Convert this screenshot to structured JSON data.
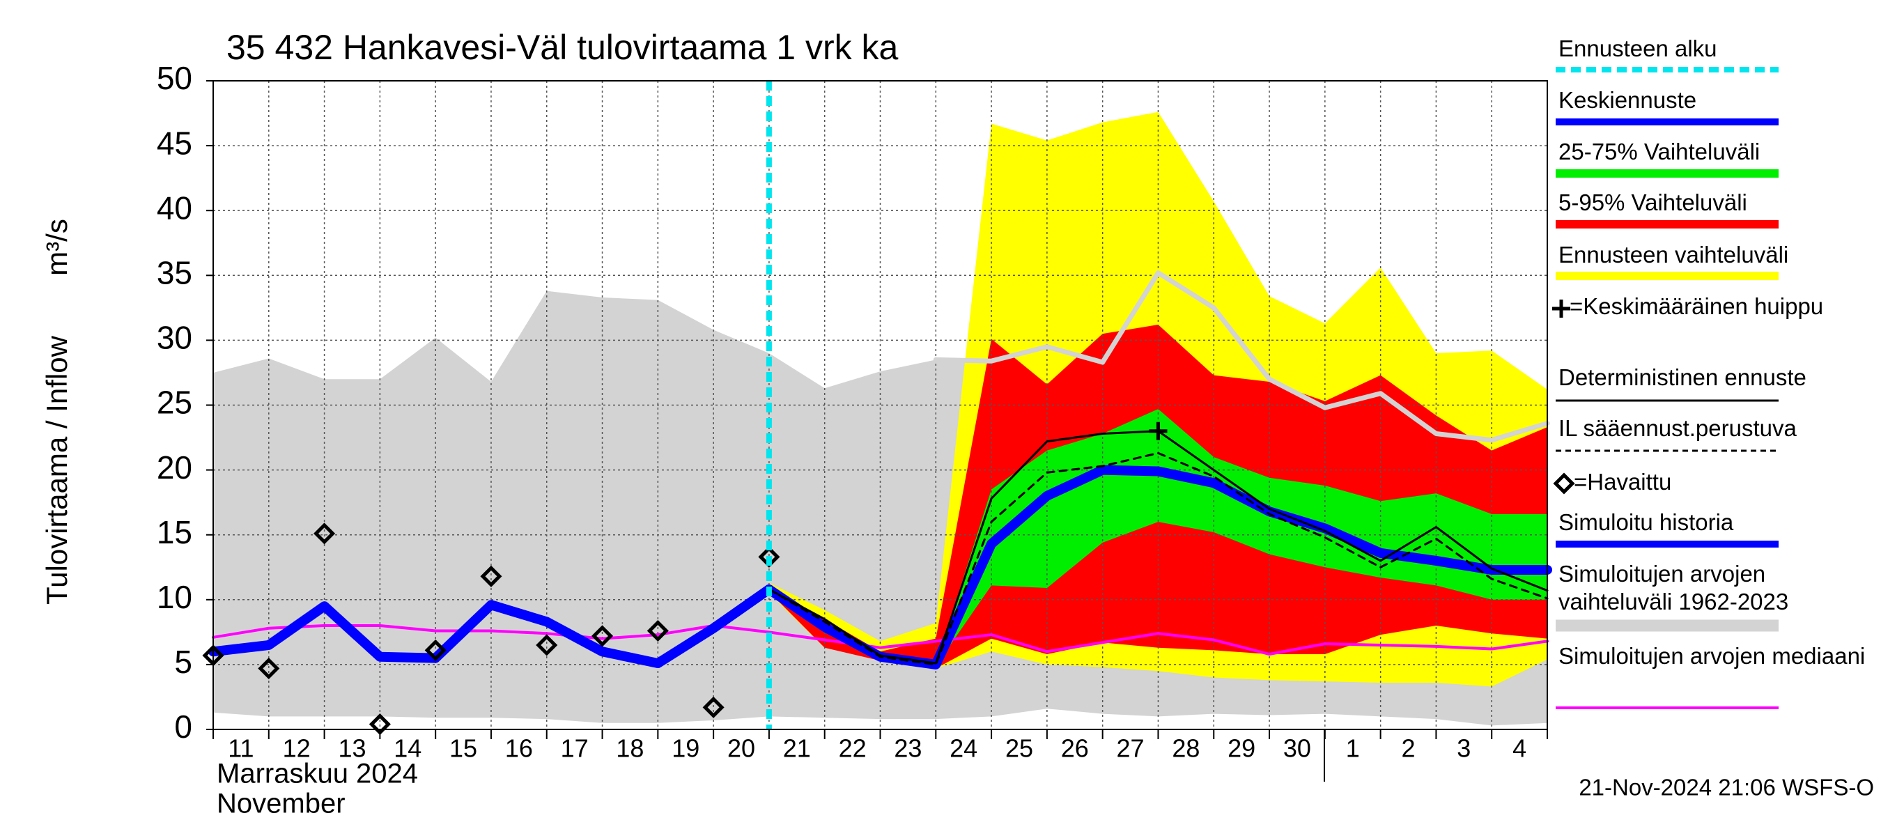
{
  "chart_data": {
    "type": "line",
    "title": "35 432 Hankavesi-Väl tulovirtaama 1 vrk ka",
    "y_label": "Tulovirtaama / Inflow",
    "y_unit": "m³/s",
    "x_month_label": "Marraskuu 2024",
    "x_month_label_en": "November",
    "footer": "21-Nov-2024 21:06 WSFS-O",
    "categories": [
      "11",
      "12",
      "13",
      "14",
      "15",
      "16",
      "17",
      "18",
      "19",
      "20",
      "21",
      "22",
      "23",
      "24",
      "25",
      "26",
      "27",
      "28",
      "29",
      "30",
      "1",
      "2",
      "3",
      "4",
      null
    ],
    "ylim": [
      0,
      50
    ],
    "yticks": [
      0,
      5,
      10,
      15,
      20,
      25,
      30,
      35,
      40,
      45,
      50
    ],
    "grid": true,
    "bands": [
      {
        "name": "Simuloitujen arvojen vaihteluväli 1962-2023",
        "color": "#d3d3d3",
        "upper": [
          27.5,
          28.6,
          27,
          27,
          30.2,
          26.8,
          33.8,
          33.3,
          33.1,
          30.8,
          29,
          26.3,
          27.6,
          28.5,
          28.4,
          29.5,
          28.3,
          35.2,
          32.5,
          27,
          24.8,
          25.9,
          22.8,
          22.3,
          23.6
        ],
        "lower": [
          1.3,
          1.0,
          1.0,
          1.0,
          0.9,
          0.9,
          0.8,
          0.5,
          0.5,
          0.7,
          1.0,
          0.9,
          0.8,
          0.8,
          1.0,
          1.6,
          1.2,
          1.0,
          1.2,
          1.1,
          1.2,
          1.0,
          0.8,
          0.3,
          0.5
        ]
      },
      {
        "name": "Ennusteen vaihteluväli",
        "color": "#ffff00",
        "upper": [
          null,
          null,
          null,
          null,
          null,
          null,
          null,
          null,
          null,
          null,
          11.3,
          9.2,
          6.8,
          8.2,
          46.7,
          45.4,
          46.8,
          47.6,
          40.7,
          33.4,
          31.3,
          35.6,
          29.0,
          29.2,
          26.2
        ],
        "lower": [
          null,
          null,
          null,
          null,
          null,
          null,
          null,
          null,
          null,
          null,
          10.5,
          6.3,
          5.5,
          4.7,
          6.0,
          5.0,
          4.8,
          4.5,
          4.0,
          3.8,
          3.7,
          3.6,
          3.6,
          3.3,
          5.4
        ]
      },
      {
        "name": "5-95% Vaihteluväli",
        "color": "#ff0000",
        "upper": [
          null,
          null,
          null,
          null,
          null,
          null,
          null,
          null,
          null,
          null,
          11.0,
          8.5,
          6.0,
          7.0,
          30.1,
          26.6,
          30.5,
          31.2,
          27.3,
          26.8,
          25.3,
          27.3,
          24.2,
          21.5,
          23.3
        ],
        "lower": [
          null,
          null,
          null,
          null,
          null,
          null,
          null,
          null,
          null,
          null,
          10.6,
          6.3,
          5.3,
          4.7,
          7.0,
          5.8,
          6.7,
          6.3,
          6.1,
          5.8,
          5.8,
          7.3,
          8.0,
          7.4,
          7.0
        ]
      },
      {
        "name": "25-75% Vaihteluväli",
        "color": "#00ee00",
        "upper": [
          null,
          null,
          null,
          null,
          null,
          null,
          null,
          null,
          null,
          null,
          10.9,
          8.0,
          5.8,
          5.0,
          18.5,
          21.5,
          22.8,
          24.7,
          21.0,
          19.4,
          18.8,
          17.6,
          18.2,
          16.6,
          16.6
        ],
        "lower": [
          null,
          null,
          null,
          null,
          null,
          null,
          null,
          null,
          null,
          null,
          10.7,
          7.5,
          5.5,
          4.9,
          11.1,
          10.9,
          14.4,
          16.0,
          15.2,
          13.5,
          12.5,
          11.7,
          11.1,
          10.0,
          10.0
        ]
      }
    ],
    "series": [
      {
        "name": "Simuloitu historia",
        "color": "#0000ff",
        "values": [
          6.0,
          6.5,
          9.5,
          5.6,
          5.5,
          9.6,
          8.3,
          6.0,
          5.1,
          7.8,
          10.8,
          null,
          null,
          null,
          null,
          null,
          null,
          null,
          null,
          null,
          null,
          null,
          null,
          null,
          null
        ]
      },
      {
        "name": "Keskiennuste",
        "color": "#0000ff",
        "values": [
          null,
          null,
          null,
          null,
          null,
          null,
          null,
          null,
          null,
          null,
          10.8,
          7.9,
          5.6,
          5.0,
          14.3,
          18.0,
          20.0,
          19.9,
          19.0,
          16.8,
          15.5,
          13.6,
          13.0,
          12.3,
          12.3
        ]
      },
      {
        "name": "Deterministinen ennuste",
        "color": "#000000",
        "values": [
          null,
          null,
          null,
          null,
          null,
          null,
          null,
          null,
          null,
          null,
          10.8,
          8.5,
          5.7,
          5.1,
          17.8,
          22.2,
          22.8,
          23.0,
          20.0,
          17.0,
          15.3,
          13.0,
          15.6,
          12.4,
          10.7
        ]
      },
      {
        "name": "IL sääennust.perustuva",
        "color": "#000000",
        "dashed": true,
        "values": [
          null,
          null,
          null,
          null,
          null,
          null,
          null,
          null,
          null,
          null,
          10.8,
          8.3,
          5.6,
          5.0,
          16.0,
          19.8,
          20.3,
          21.3,
          19.5,
          16.6,
          14.8,
          12.5,
          14.7,
          11.6,
          10.1
        ]
      },
      {
        "name": "Simuloitujen arvojen mediaani",
        "color": "#ff00ff",
        "values": [
          7.1,
          7.8,
          8.0,
          8.0,
          7.6,
          7.6,
          7.4,
          7.0,
          7.3,
          8.0,
          7.5,
          6.9,
          6.3,
          6.8,
          7.3,
          6.0,
          6.7,
          7.4,
          6.9,
          5.8,
          6.6,
          6.5,
          6.4,
          6.2,
          6.8
        ]
      }
    ],
    "observed": {
      "name": "=Havaittu",
      "color": "#000000",
      "values": [
        5.7,
        4.7,
        15.1,
        0.4,
        6.1,
        11.8,
        6.5,
        7.2,
        7.6,
        1.7,
        13.3,
        null,
        null,
        null,
        null,
        null,
        null,
        null,
        null,
        null,
        null,
        null,
        null,
        null,
        null
      ]
    },
    "peak": {
      "name": "=Keskimääräinen huippu",
      "x": 17,
      "value": 23.0,
      "color": "#000000"
    },
    "forecast_start": {
      "name": "Ennusteen alku",
      "x": 10,
      "color": "#00e5ee"
    }
  }
}
